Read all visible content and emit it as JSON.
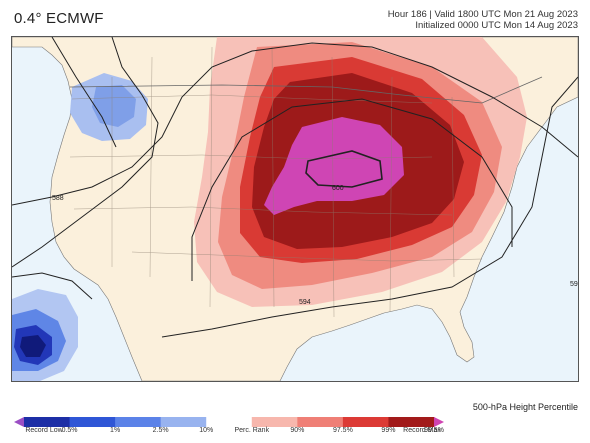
{
  "header": {
    "model_title": "0.4° ECMWF",
    "valid_line": "Hour 186 | Valid 1800 UTC Mon 21 Aug 2023",
    "init_line": "Initialized 0000 UTC Mon 14 Aug 2023"
  },
  "map": {
    "contour_labels": [
      "588",
      "594",
      "600"
    ]
  },
  "legend": {
    "title": "500-hPa Height Percentile",
    "labels": [
      "Record Low",
      "0.5%",
      "1%",
      "2.5%",
      "10%",
      "Perc. Rank",
      "90%",
      "97.5%",
      "99%",
      "99.5%",
      "Record Max"
    ],
    "colors": [
      "#9b4fc4",
      "#1d2fa6",
      "#2f56d6",
      "#5b82e8",
      "#98b3ef",
      "#ffffff",
      "#f7b7ad",
      "#ef7f76",
      "#dc3a35",
      "#a21a1a",
      "#cf43b2"
    ]
  }
}
